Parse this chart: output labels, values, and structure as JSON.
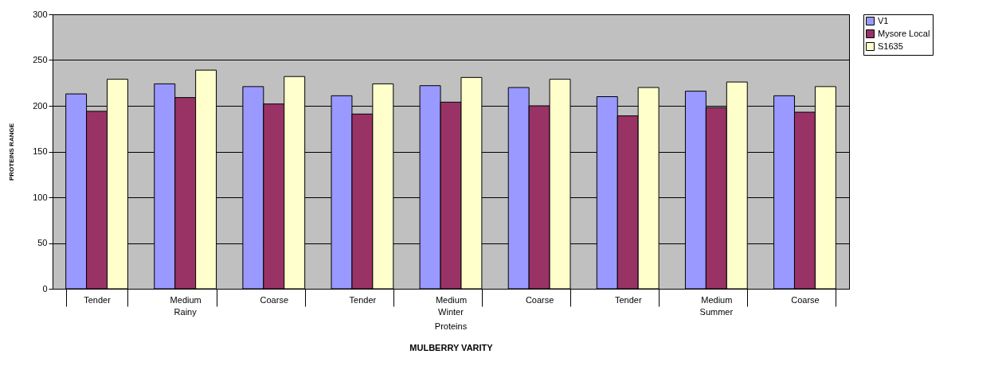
{
  "chart_data": {
    "type": "bar",
    "xlabel": "MULBERRY VARITY",
    "ylabel": "PROTEINS RANGE",
    "categories": [
      "Tender",
      "Medium",
      "Coarse",
      "Tender",
      "Medium",
      "Coarse",
      "Tender",
      "Medium",
      "Coarse"
    ],
    "annotations": [
      "Rainy",
      "Winter",
      "Summer",
      "Proteins"
    ],
    "series": [
      {
        "name": "V1",
        "color": "#9999ff",
        "values": [
          213,
          224,
          221,
          211,
          222,
          220,
          210,
          216,
          211
        ]
      },
      {
        "name": "Mysore Local",
        "color": "#993366",
        "values": [
          194,
          209,
          202,
          191,
          204,
          200,
          189,
          198,
          193
        ]
      },
      {
        "name": "S1635",
        "color": "#ffffcc",
        "values": [
          229,
          239,
          232,
          224,
          231,
          229,
          220,
          226,
          221
        ]
      }
    ],
    "ylim": [
      0,
      300
    ],
    "yticks": [
      0,
      50,
      100,
      150,
      200,
      250,
      300
    ],
    "grid": "y",
    "legend": "right"
  }
}
